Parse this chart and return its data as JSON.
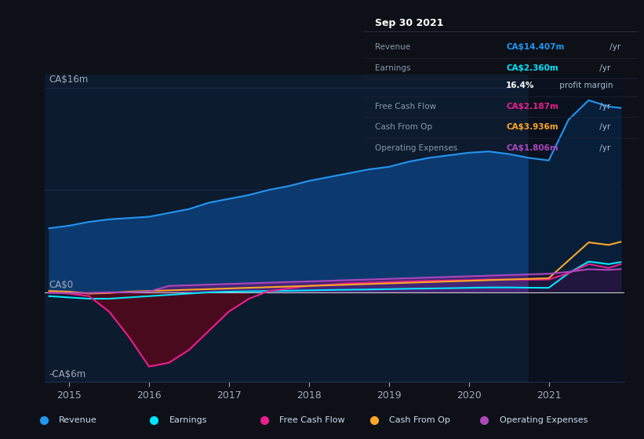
{
  "bg_color": "#0d1117",
  "plot_bg_color": "#0d1b2e",
  "grid_color": "#1e3050",
  "text_color": "#a0aab8",
  "title_color": "#ffffff",
  "y_label_top": "CA$16m",
  "y_label_zero": "CA$0",
  "y_label_bottom": "-CA$6m",
  "x_ticks": [
    2015,
    2016,
    2017,
    2018,
    2019,
    2020,
    2021
  ],
  "ylim": [
    -7,
    17
  ],
  "xlim_start": 2014.7,
  "xlim_end": 2021.95,
  "annotation_box": {
    "title": "Sep 30 2021",
    "rows": [
      {
        "label": "Revenue",
        "val_col": "CA$14.407m",
        "val_plain": " /yr",
        "value_color": "#2196f3"
      },
      {
        "label": "Earnings",
        "val_col": "CA$2.360m",
        "val_plain": " /yr",
        "value_color": "#00e5ff"
      },
      {
        "label": "",
        "val_col": "16.4%",
        "val_plain": " profit margin",
        "value_color": "#ffffff"
      },
      {
        "label": "Free Cash Flow",
        "val_col": "CA$2.187m",
        "val_plain": " /yr",
        "value_color": "#e91e8c"
      },
      {
        "label": "Cash From Op",
        "val_col": "CA$3.936m",
        "val_plain": " /yr",
        "value_color": "#ffa726"
      },
      {
        "label": "Operating Expenses",
        "val_col": "CA$1.806m",
        "val_plain": " /yr",
        "value_color": "#ab47bc"
      }
    ]
  },
  "legend_items": [
    {
      "label": "Revenue",
      "color": "#2196f3"
    },
    {
      "label": "Earnings",
      "color": "#00e5ff"
    },
    {
      "label": "Free Cash Flow",
      "color": "#e91e8c"
    },
    {
      "label": "Cash From Op",
      "color": "#ffa726"
    },
    {
      "label": "Operating Expenses",
      "color": "#ab47bc"
    }
  ],
  "series": {
    "revenue": {
      "color": "#2196f3",
      "fill_color": "#0d3a6e",
      "x": [
        2014.75,
        2015.0,
        2015.25,
        2015.5,
        2015.75,
        2016.0,
        2016.25,
        2016.5,
        2016.75,
        2017.0,
        2017.25,
        2017.5,
        2017.75,
        2018.0,
        2018.25,
        2018.5,
        2018.75,
        2019.0,
        2019.25,
        2019.5,
        2019.75,
        2020.0,
        2020.25,
        2020.5,
        2020.75,
        2021.0,
        2021.25,
        2021.5,
        2021.75,
        2021.9
      ],
      "y": [
        5.0,
        5.2,
        5.5,
        5.7,
        5.8,
        5.9,
        6.2,
        6.5,
        7.0,
        7.3,
        7.6,
        8.0,
        8.3,
        8.7,
        9.0,
        9.3,
        9.6,
        9.8,
        10.2,
        10.5,
        10.7,
        10.9,
        11.0,
        10.8,
        10.5,
        10.3,
        13.5,
        15.0,
        14.5,
        14.4
      ]
    },
    "earnings": {
      "color": "#00e5ff",
      "x": [
        2014.75,
        2015.0,
        2015.25,
        2015.5,
        2015.75,
        2016.0,
        2016.25,
        2016.5,
        2016.75,
        2017.0,
        2017.25,
        2017.5,
        2017.75,
        2018.0,
        2018.25,
        2018.5,
        2018.75,
        2019.0,
        2019.25,
        2019.5,
        2019.75,
        2020.0,
        2020.25,
        2020.5,
        2020.75,
        2021.0,
        2021.25,
        2021.5,
        2021.75,
        2021.9
      ],
      "y": [
        -0.3,
        -0.4,
        -0.5,
        -0.5,
        -0.4,
        -0.3,
        -0.2,
        -0.1,
        0.0,
        0.05,
        0.08,
        0.1,
        0.12,
        0.15,
        0.18,
        0.2,
        0.22,
        0.25,
        0.28,
        0.3,
        0.32,
        0.35,
        0.38,
        0.38,
        0.36,
        0.35,
        1.5,
        2.4,
        2.2,
        2.36
      ]
    },
    "free_cash_flow": {
      "color": "#e91e8c",
      "x": [
        2014.75,
        2015.0,
        2015.25,
        2015.5,
        2015.75,
        2016.0,
        2016.25,
        2016.5,
        2016.75,
        2017.0,
        2017.25,
        2017.5,
        2017.75,
        2018.0,
        2018.25,
        2018.5,
        2018.75,
        2019.0,
        2019.25,
        2019.5,
        2019.75,
        2020.0,
        2020.25,
        2020.5,
        2020.75,
        2021.0,
        2021.25,
        2021.5,
        2021.75,
        2021.9
      ],
      "y": [
        0.0,
        -0.1,
        -0.3,
        -1.5,
        -3.5,
        -5.8,
        -5.5,
        -4.5,
        -3.0,
        -1.5,
        -0.5,
        0.1,
        0.3,
        0.5,
        0.6,
        0.7,
        0.75,
        0.8,
        0.85,
        0.9,
        0.92,
        0.95,
        1.0,
        1.0,
        0.98,
        1.0,
        1.5,
        2.2,
        1.9,
        2.19
      ]
    },
    "cash_from_op": {
      "color": "#ffa726",
      "x": [
        2014.75,
        2015.0,
        2015.25,
        2015.5,
        2015.75,
        2016.0,
        2016.25,
        2016.5,
        2016.75,
        2017.0,
        2017.25,
        2017.5,
        2017.75,
        2018.0,
        2018.25,
        2018.5,
        2018.75,
        2019.0,
        2019.25,
        2019.5,
        2019.75,
        2020.0,
        2020.25,
        2020.5,
        2020.75,
        2021.0,
        2021.25,
        2021.5,
        2021.75,
        2021.9
      ],
      "y": [
        0.1,
        0.05,
        -0.1,
        -0.05,
        0.05,
        0.1,
        0.15,
        0.2,
        0.25,
        0.3,
        0.35,
        0.4,
        0.45,
        0.5,
        0.55,
        0.6,
        0.65,
        0.7,
        0.75,
        0.8,
        0.85,
        0.9,
        0.95,
        1.0,
        1.05,
        1.1,
        2.5,
        3.9,
        3.7,
        3.94
      ]
    },
    "operating_expenses": {
      "color": "#ab47bc",
      "x": [
        2014.75,
        2015.0,
        2015.25,
        2015.5,
        2015.75,
        2016.0,
        2016.25,
        2016.5,
        2016.75,
        2017.0,
        2017.25,
        2017.5,
        2017.75,
        2018.0,
        2018.25,
        2018.5,
        2018.75,
        2019.0,
        2019.25,
        2019.5,
        2019.75,
        2020.0,
        2020.25,
        2020.5,
        2020.75,
        2021.0,
        2021.25,
        2021.5,
        2021.75,
        2021.9
      ],
      "y": [
        -0.05,
        -0.05,
        -0.05,
        0.0,
        0.0,
        0.05,
        0.5,
        0.55,
        0.6,
        0.65,
        0.7,
        0.75,
        0.8,
        0.85,
        0.9,
        0.95,
        1.0,
        1.05,
        1.1,
        1.15,
        1.2,
        1.25,
        1.3,
        1.35,
        1.4,
        1.45,
        1.6,
        1.8,
        1.75,
        1.81
      ]
    }
  },
  "highlight_x_start": 2020.75,
  "highlight_x_end": 2021.95
}
